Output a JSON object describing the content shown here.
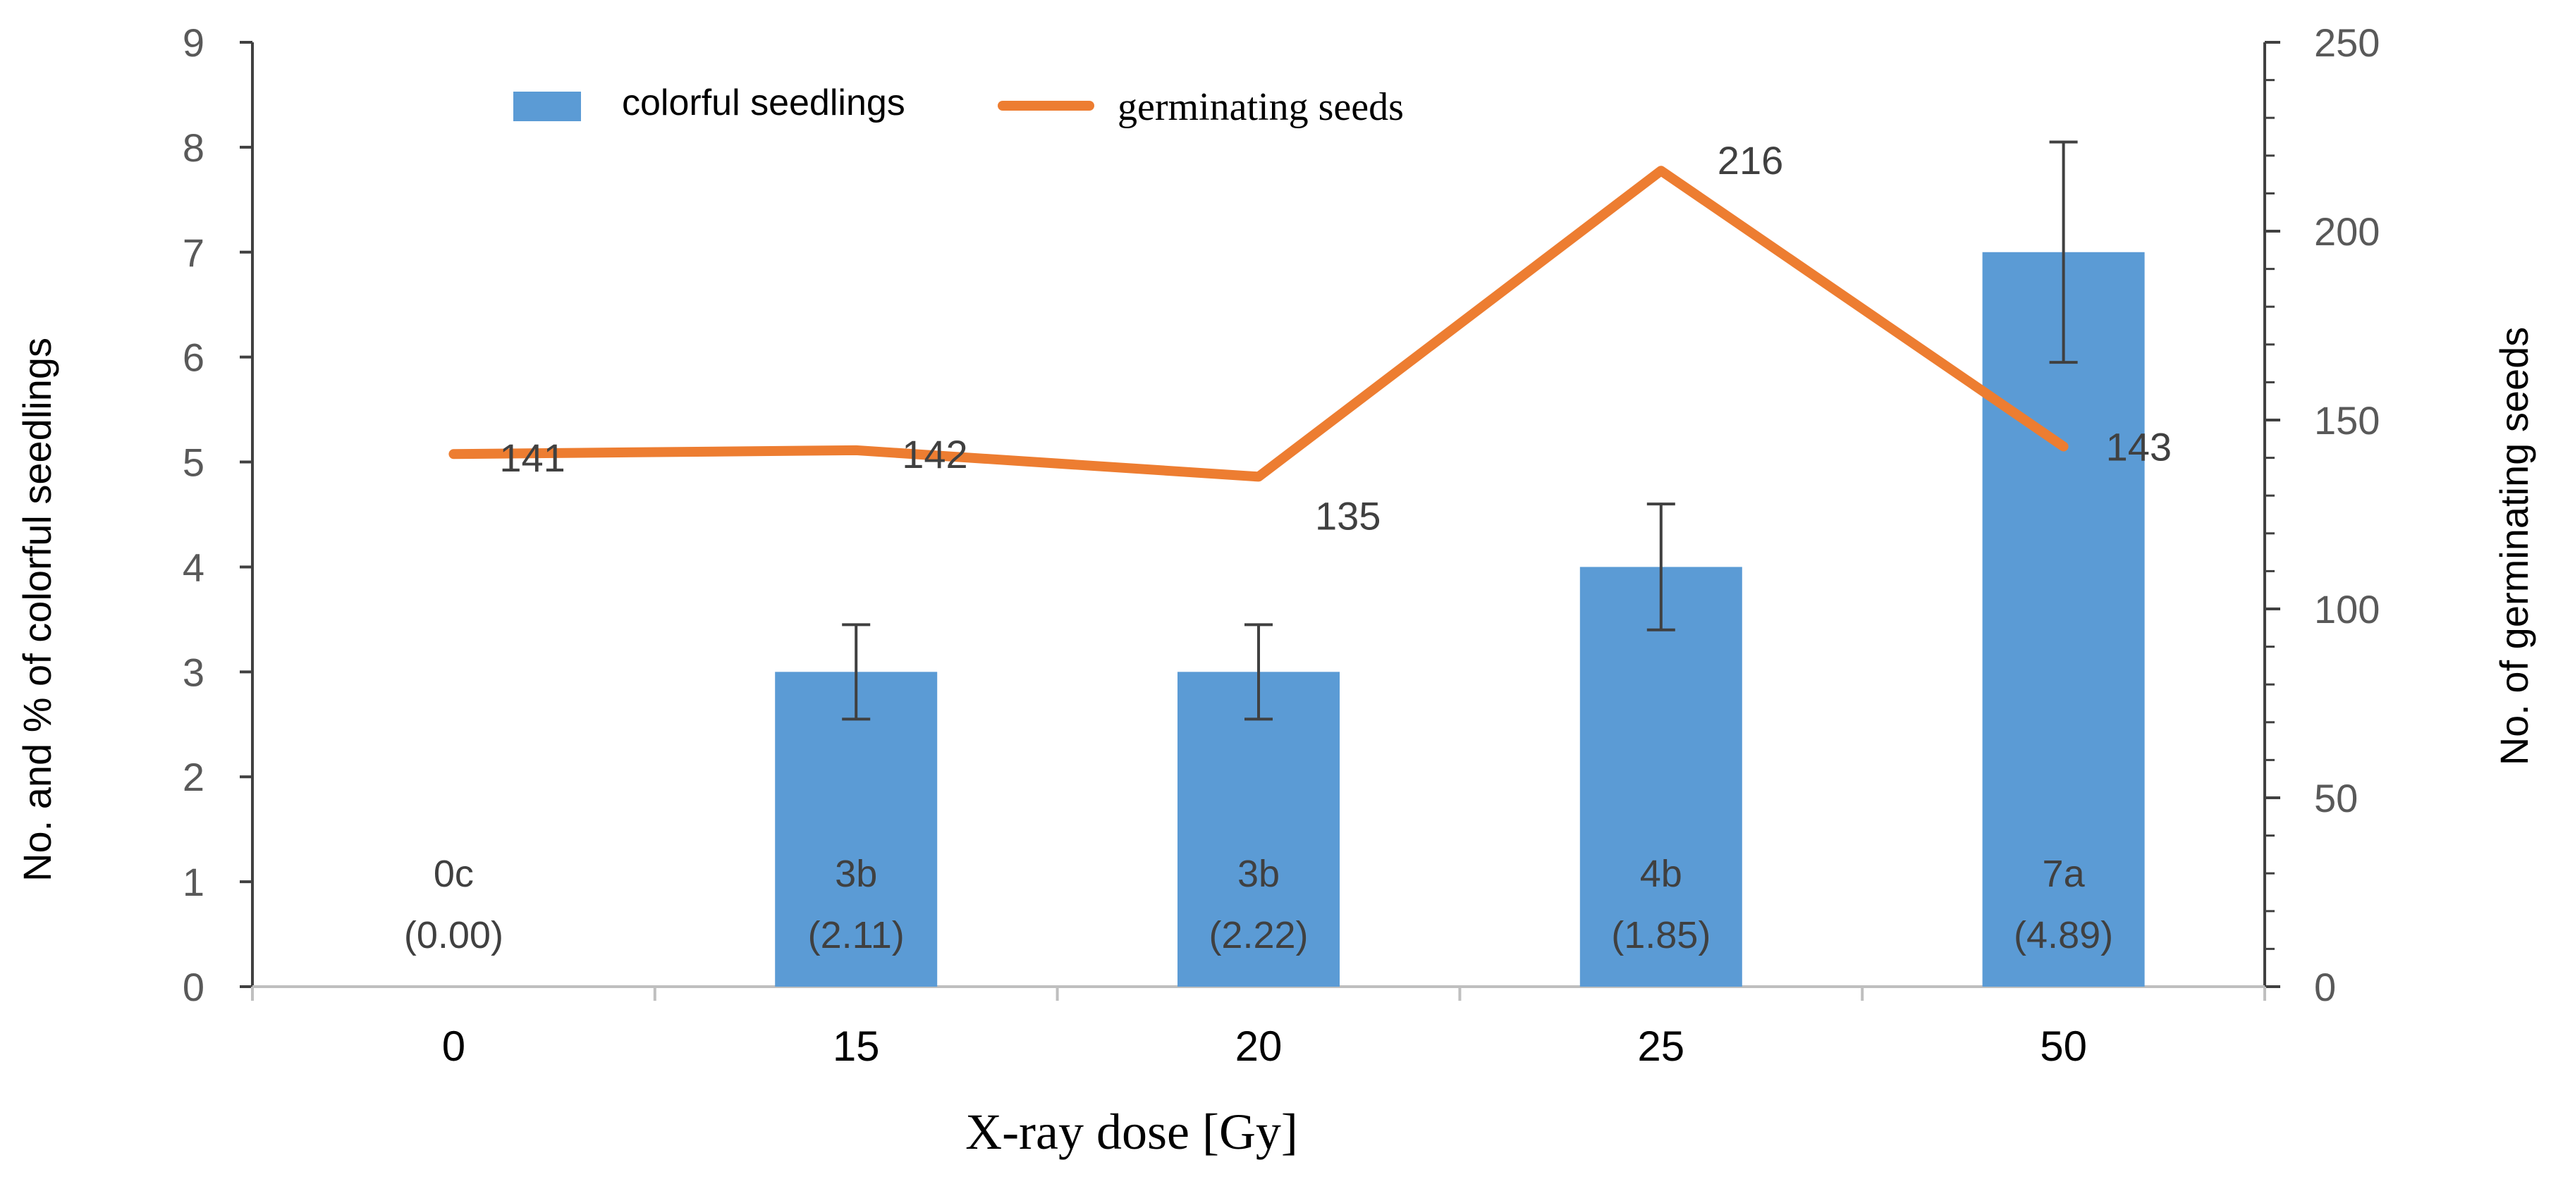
{
  "chart_data": {
    "type": "bar",
    "title": "",
    "xlabel": "X-ray dose [Gy]",
    "ylabel": "No. and % of colorful seedlings",
    "y2label": "No. of germinating seeds",
    "categories": [
      "0",
      "15",
      "20",
      "25",
      "50"
    ],
    "ylim": [
      0,
      9
    ],
    "y_ticks": [
      "0",
      "1",
      "2",
      "3",
      "4",
      "5",
      "6",
      "7",
      "8",
      "9"
    ],
    "y2lim": [
      0,
      250
    ],
    "y2_ticks": [
      "0",
      "50",
      "100",
      "150",
      "200",
      "250"
    ],
    "legend_position": "top-center",
    "series": [
      {
        "name": "colorful seedlings",
        "type": "bar",
        "axis": "left",
        "color": "#5B9BD5",
        "values": [
          0,
          3,
          3,
          4,
          7
        ],
        "error_high": [
          0,
          3.45,
          3.45,
          4.6,
          8.05
        ],
        "error_low": [
          0,
          2.55,
          2.55,
          3.4,
          5.95
        ],
        "labels": [
          "0c",
          "3b",
          "3b",
          "4b",
          "7a"
        ],
        "percent_labels": [
          "(0.00)",
          "(2.11)",
          "(2.22)",
          "(1.85)",
          "(4.89)"
        ]
      },
      {
        "name": "germinating seeds",
        "type": "line",
        "axis": "right",
        "color": "#ED7D31",
        "values": [
          141,
          142,
          135,
          216,
          143
        ],
        "labels": [
          "141",
          "142",
          "135",
          "216",
          "143"
        ]
      }
    ]
  }
}
